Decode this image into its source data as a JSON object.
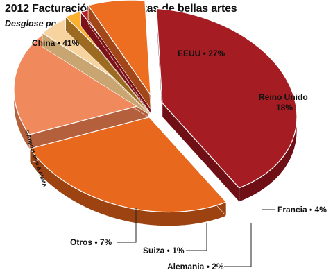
{
  "title": "2012 Facturación de subastas de bellas artes",
  "subtitle": "Desglose por países",
  "copyright": "© Artprice.com & AMMA",
  "chart_data": {
    "type": "pie",
    "style": "3d-exploded",
    "title": "2012 Facturación de subastas de bellas artes",
    "subtitle": "Desglose por países",
    "slices": [
      {
        "label": "China",
        "text": "China • 41%",
        "value": 41,
        "color": "#a51c22",
        "side": "#6e1015"
      },
      {
        "label": "EEUU",
        "text": "EEUU • 27%",
        "value": 27,
        "color": "#e8691e",
        "side": "#9c4311"
      },
      {
        "label": "Reino Unido",
        "text": "Reino Unido",
        "pct_text": "18%",
        "value": 18,
        "color": "#f08a5d",
        "side": "#b4603c"
      },
      {
        "label": "Francia",
        "text": "Francia • 4%",
        "value": 4,
        "color": "#f7d3a0",
        "side": "#c9a671"
      },
      {
        "label": "Alemania",
        "text": "Alemania • 2%",
        "value": 2,
        "color": "#fbb02f",
        "side": "#9c6a20"
      },
      {
        "label": "Suiza",
        "text": "Suiza • 1%",
        "value": 1,
        "color": "#b81e25",
        "side": "#7a1217"
      },
      {
        "label": "Otros",
        "text": "Otros • 7%",
        "value": 7,
        "color": "#ed6d21",
        "side": "#a2471a"
      }
    ]
  }
}
